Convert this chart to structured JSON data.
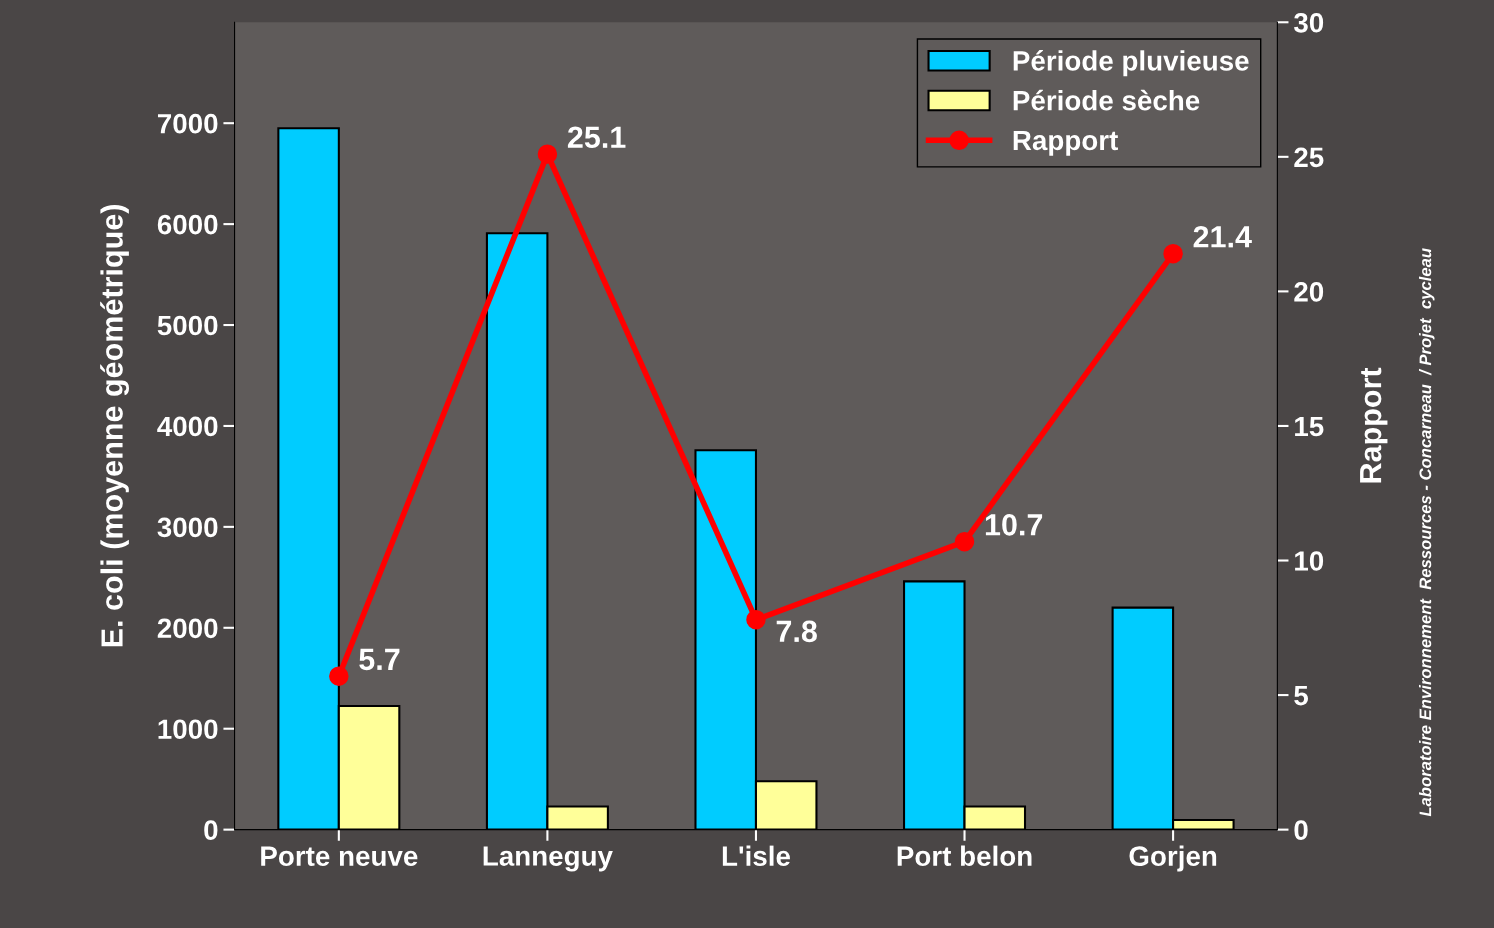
{
  "chart_data": {
    "type": "bar",
    "categories": [
      "Porte neuve",
      "Lanneguy",
      "L'isle",
      "Port belon",
      "Gorjen"
    ],
    "ylabel": "E. coli (moyenne géométrique)",
    "y2label": "Rapport",
    "series": [
      {
        "name": "Période pluvieuse",
        "color": "#00ccff",
        "values": [
          6950,
          5910,
          3760,
          2460,
          2200
        ]
      },
      {
        "name": "Période sèche",
        "color": "#ffff99",
        "values": [
          1225,
          230,
          480,
          230,
          95
        ]
      },
      {
        "name": "Rapport",
        "type": "line",
        "axis": "y2",
        "color": "#ff0000",
        "values": [
          5.7,
          25.1,
          7.8,
          10.7,
          21.4
        ],
        "value_labels": [
          "5.7",
          "25.1",
          "7.8",
          "10.7",
          "21.4"
        ]
      }
    ],
    "ylim": [
      0,
      8000
    ],
    "yticks": [
      0,
      1000,
      2000,
      3000,
      4000,
      5000,
      6000,
      7000
    ],
    "y2lim": [
      0,
      30
    ],
    "y2ticks": [
      0,
      5,
      10,
      15,
      20,
      25,
      30
    ],
    "marker": "circle",
    "legend": "top right",
    "grid": false,
    "annotations": [
      "Laboratoire Environnement  Ressources - Concarneau  / Projet  cycleau"
    ]
  }
}
